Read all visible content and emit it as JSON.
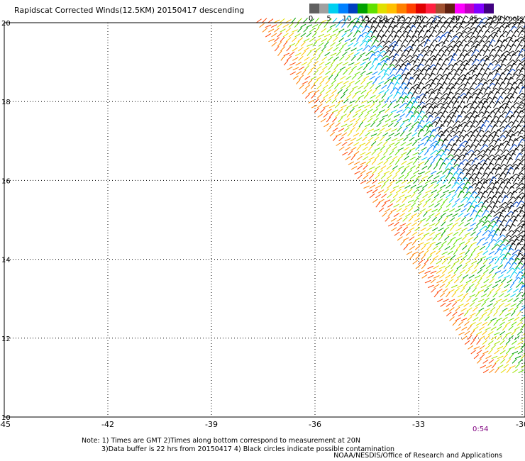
{
  "title": "Rapidscat Corrected Winds(12.5KM) 20150417 descending",
  "colorbar": {
    "labels": [
      "0",
      "5",
      "10",
      "15",
      "20",
      "25",
      "30",
      "35",
      "40",
      "45",
      ">50 knots"
    ],
    "colors": [
      "#606060",
      "#a0a0a0",
      "#00d0f0",
      "#0080ff",
      "#0040c0",
      "#00a000",
      "#60e000",
      "#e0e000",
      "#ffc000",
      "#ff8000",
      "#ff4000",
      "#e00000",
      "#ff2040",
      "#a05030",
      "#602010",
      "#ff00ff",
      "#c000c0",
      "#8000ff",
      "#400080"
    ]
  },
  "axes": {
    "lon_ticks": [
      "-45",
      "-42",
      "-39",
      "-36",
      "-33",
      "-30"
    ],
    "lat_ticks": [
      "20",
      "18",
      "16",
      "14",
      "12",
      "10"
    ],
    "lon_range": [
      -45,
      -30
    ],
    "lat_range": [
      10,
      20
    ],
    "grid": "dotted"
  },
  "swath": {
    "orbit": "descending",
    "time_label": "0:54"
  },
  "notes": {
    "line1": "Note: 1) Times are GMT 2)Times along bottom correspond to measurement at 20N",
    "line2": "3)Data buffer is 22 hrs from 20150417 4) Black circles indicate possible contamination",
    "credit": "NOAA/NESDIS/Office of Research and Applications"
  }
}
